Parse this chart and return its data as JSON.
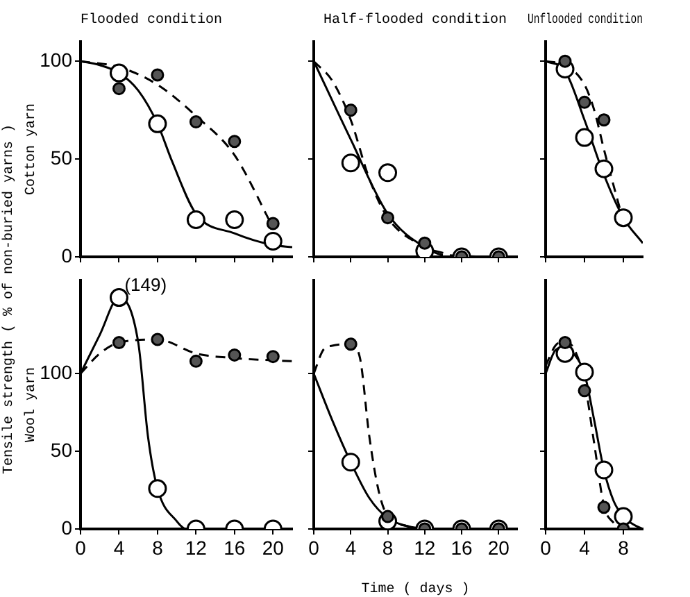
{
  "chart_data": [
    {
      "type": "scatter",
      "title": "Flooded condition",
      "ylabel": "Cotton yarn",
      "annotations": [
        "Tensile strength ( % of non-buried yarns )"
      ],
      "xlim": [
        0,
        22
      ],
      "xticks": [
        0,
        4,
        8,
        12,
        16,
        20
      ],
      "ylim": [
        0,
        110
      ],
      "yticks": [
        0,
        50,
        100
      ],
      "tick_labels": "y",
      "series": [
        {
          "type": "line",
          "color": "#000000",
          "marker": "none",
          "line_style": "solid",
          "x": [
            0,
            2,
            4,
            6,
            8,
            9.5,
            12,
            16,
            20,
            22
          ],
          "values": [
            100,
            98,
            94,
            85,
            68,
            49,
            22,
            12,
            6,
            5
          ]
        },
        {
          "type": "line",
          "color": "#000000",
          "marker": "none",
          "line_style": "dashed",
          "x": [
            0,
            4,
            8,
            12,
            16,
            20
          ],
          "values": [
            100,
            97,
            88,
            72,
            52,
            15
          ]
        },
        {
          "color": "#ffffff",
          "marker": "circle",
          "x": [
            4,
            8,
            12,
            16,
            20
          ],
          "values": [
            94,
            68,
            19,
            19,
            8
          ]
        },
        {
          "color": "#555555",
          "marker": "circle",
          "x": [
            4,
            8,
            12,
            16,
            20
          ],
          "values": [
            86,
            93,
            69,
            59,
            17
          ]
        }
      ]
    },
    {
      "type": "scatter",
      "title": "Half-flooded condition",
      "xlim": [
        0,
        22
      ],
      "xticks": [
        0,
        4,
        8,
        12,
        16,
        20
      ],
      "ylim": [
        0,
        110
      ],
      "yticks": [
        0,
        50,
        100
      ],
      "tick_labels": false,
      "series": [
        {
          "type": "line",
          "color": "#000000",
          "marker": "none",
          "line_style": "solid",
          "x": [
            0,
            4,
            8,
            12,
            14
          ],
          "values": [
            100,
            60,
            22,
            5,
            2
          ]
        },
        {
          "type": "line",
          "color": "#000000",
          "marker": "none",
          "line_style": "dashed",
          "x": [
            0,
            2,
            4,
            6,
            8,
            12,
            14,
            22
          ],
          "values": [
            100,
            90,
            70,
            40,
            20,
            5,
            1,
            0
          ]
        },
        {
          "color": "#ffffff",
          "marker": "circle",
          "x": [
            4,
            8,
            12,
            16,
            20
          ],
          "values": [
            48,
            43,
            3,
            0,
            0
          ]
        },
        {
          "color": "#555555",
          "marker": "circle",
          "x": [
            4,
            8,
            12,
            16,
            20
          ],
          "values": [
            75,
            20,
            7,
            0,
            0
          ]
        }
      ]
    },
    {
      "type": "scatter",
      "title": "Unflooded condition",
      "xlim": [
        0,
        10
      ],
      "xticks": [
        0,
        4,
        8
      ],
      "ylim": [
        0,
        110
      ],
      "yticks": [
        0,
        50,
        100
      ],
      "tick_labels": false,
      "series": [
        {
          "type": "line",
          "color": "#000000",
          "marker": "none",
          "line_style": "solid",
          "x": [
            0,
            2,
            4,
            6,
            8,
            10
          ],
          "values": [
            100,
            95,
            70,
            42,
            20,
            7
          ]
        },
        {
          "type": "line",
          "color": "#000000",
          "marker": "none",
          "line_style": "dashed",
          "x": [
            0,
            2,
            4,
            5,
            6,
            8
          ],
          "values": [
            100,
            98,
            88,
            75,
            55,
            18
          ]
        },
        {
          "color": "#ffffff",
          "marker": "circle",
          "x": [
            2,
            4,
            6,
            8
          ],
          "values": [
            96,
            61,
            45,
            20
          ]
        },
        {
          "color": "#555555",
          "marker": "circle",
          "x": [
            2,
            4,
            6
          ],
          "values": [
            100,
            79,
            70
          ]
        }
      ]
    },
    {
      "type": "scatter",
      "ylabel": "Wool yarn",
      "xlim": [
        0,
        22
      ],
      "xticks": [
        0,
        4,
        8,
        12,
        16,
        20
      ],
      "ylim": [
        0,
        160
      ],
      "yticks": [
        0,
        50,
        100
      ],
      "series": [
        {
          "type": "line",
          "color": "#000000",
          "marker": "none",
          "line_style": "solid",
          "x": [
            0,
            2,
            4,
            6,
            7,
            8,
            10,
            11,
            22
          ],
          "values": [
            100,
            125,
            149,
            120,
            60,
            26,
            5,
            0,
            0
          ]
        },
        {
          "type": "line",
          "color": "#000000",
          "marker": "none",
          "line_style": "dashed",
          "x": [
            0,
            2,
            4,
            8,
            12,
            16,
            22
          ],
          "values": [
            100,
            113,
            120,
            122,
            113,
            110,
            108
          ]
        },
        {
          "color": "#ffffff",
          "marker": "circle",
          "x": [
            4,
            8,
            12,
            16,
            20
          ],
          "values": [
            149,
            26,
            0,
            0,
            0
          ],
          "value_labels": [
            "(149)",
            null,
            null,
            null,
            null
          ]
        },
        {
          "color": "#555555",
          "marker": "circle",
          "x": [
            4,
            8,
            12,
            16,
            20
          ],
          "values": [
            120,
            122,
            108,
            112,
            111
          ]
        }
      ]
    },
    {
      "type": "scatter",
      "xlabel": "Time ( days )",
      "xlim": [
        0,
        22
      ],
      "xticks": [
        0,
        4,
        8,
        12,
        16,
        20
      ],
      "ylim": [
        0,
        160
      ],
      "yticks": [
        0,
        50,
        100
      ],
      "tick_labels": "x",
      "series": [
        {
          "type": "line",
          "color": "#000000",
          "marker": "none",
          "line_style": "solid",
          "x": [
            0,
            2,
            4,
            6,
            8,
            10,
            12
          ],
          "values": [
            100,
            70,
            43,
            20,
            7,
            2,
            0
          ]
        },
        {
          "type": "line",
          "color": "#000000",
          "marker": "none",
          "line_style": "dashed",
          "x": [
            0,
            1,
            2,
            4,
            5,
            6,
            7,
            8,
            10,
            12,
            22
          ],
          "values": [
            100,
            115,
            118,
            119,
            110,
            60,
            25,
            8,
            2,
            0,
            0
          ]
        },
        {
          "color": "#ffffff",
          "marker": "circle",
          "x": [
            4,
            8,
            12,
            16,
            20
          ],
          "values": [
            43,
            5,
            0,
            0,
            0
          ]
        },
        {
          "color": "#555555",
          "marker": "circle",
          "x": [
            4,
            8,
            12,
            16,
            20
          ],
          "values": [
            119,
            8,
            0,
            0,
            0
          ]
        }
      ]
    },
    {
      "type": "scatter",
      "xlim": [
        0,
        10
      ],
      "xticks": [
        0,
        4,
        8
      ],
      "ylim": [
        0,
        160
      ],
      "yticks": [
        0,
        50,
        100
      ],
      "tick_labels": "x",
      "series": [
        {
          "type": "line",
          "color": "#000000",
          "marker": "none",
          "line_style": "solid",
          "x": [
            0,
            1,
            2,
            3,
            4,
            5,
            6,
            7,
            8,
            9,
            10
          ],
          "values": [
            100,
            115,
            117,
            112,
            100,
            70,
            38,
            18,
            8,
            3,
            0
          ]
        },
        {
          "type": "line",
          "color": "#000000",
          "marker": "none",
          "line_style": "dashed",
          "x": [
            0,
            1,
            2,
            3,
            4,
            5,
            6,
            7,
            8,
            9
          ],
          "values": [
            105,
            118,
            121,
            115,
            95,
            55,
            15,
            4,
            0,
            0
          ]
        },
        {
          "color": "#ffffff",
          "marker": "circle",
          "x": [
            2,
            4,
            6,
            8
          ],
          "values": [
            113,
            101,
            38,
            8
          ]
        },
        {
          "color": "#555555",
          "marker": "circle",
          "x": [
            2,
            4,
            6,
            8
          ],
          "values": [
            120,
            89,
            14,
            0
          ]
        }
      ]
    }
  ]
}
